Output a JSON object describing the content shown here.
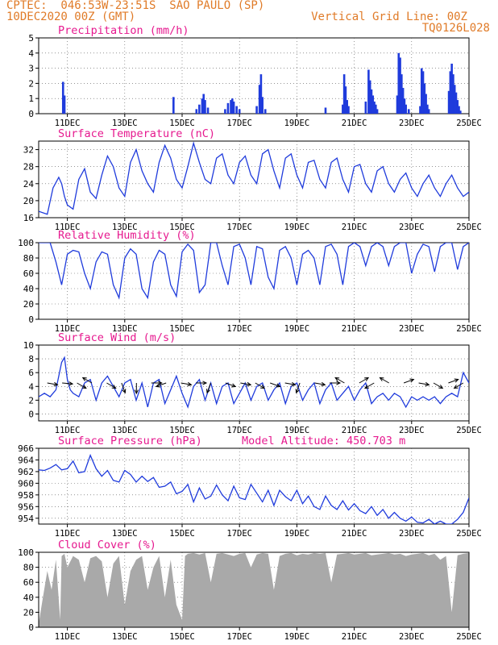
{
  "header": {
    "line1": "CPTEC:  046:53W-23:51S  SAO PAULO (SP)",
    "line2": "10DEC2020 00Z (GMT)",
    "grid_note": "Vertical Grid Line: 00Z",
    "code": "TQ0126L028"
  },
  "colors": {
    "header": "#e07b28",
    "title": "#e6198f",
    "line": "#1f3bdc",
    "cloud": "#a9a9a9",
    "grid": "#555555"
  },
  "x_axis": {
    "ticks": [
      1,
      3,
      5,
      7,
      9,
      11,
      13,
      15
    ],
    "tick_labels": [
      "11DEC",
      "13DEC",
      "15DEC",
      "17DEC",
      "19DEC",
      "21DEC",
      "23DEC",
      "25DEC"
    ],
    "range_days": [
      0,
      15
    ]
  },
  "chart_data": [
    {
      "id": "precip",
      "type": "bar",
      "title": "Precipitation (mm/h)",
      "ylim": [
        0,
        5
      ],
      "yticks": [
        0,
        1,
        2,
        3,
        4,
        5
      ],
      "grid": true,
      "points": [
        [
          0.85,
          2.1
        ],
        [
          0.9,
          1.2
        ],
        [
          4.7,
          1.1
        ],
        [
          5.5,
          0.3
        ],
        [
          5.6,
          0.6
        ],
        [
          5.7,
          1.0
        ],
        [
          5.75,
          1.3
        ],
        [
          5.8,
          0.9
        ],
        [
          5.9,
          0.4
        ],
        [
          6.5,
          0.3
        ],
        [
          6.6,
          0.7
        ],
        [
          6.7,
          0.9
        ],
        [
          6.75,
          1.0
        ],
        [
          6.8,
          0.8
        ],
        [
          6.9,
          0.5
        ],
        [
          7.0,
          0.3
        ],
        [
          7.6,
          0.5
        ],
        [
          7.7,
          1.9
        ],
        [
          7.75,
          2.6
        ],
        [
          7.8,
          1.1
        ],
        [
          7.9,
          0.3
        ],
        [
          10.0,
          0.4
        ],
        [
          10.6,
          0.6
        ],
        [
          10.65,
          2.6
        ],
        [
          10.7,
          1.8
        ],
        [
          10.75,
          0.9
        ],
        [
          10.8,
          0.5
        ],
        [
          11.4,
          0.8
        ],
        [
          11.5,
          2.9
        ],
        [
          11.55,
          2.2
        ],
        [
          11.6,
          1.6
        ],
        [
          11.65,
          1.2
        ],
        [
          11.7,
          0.8
        ],
        [
          11.75,
          0.6
        ],
        [
          11.8,
          0.3
        ],
        [
          12.5,
          1.2
        ],
        [
          12.55,
          4.0
        ],
        [
          12.6,
          3.7
        ],
        [
          12.65,
          2.6
        ],
        [
          12.7,
          1.7
        ],
        [
          12.75,
          1.0
        ],
        [
          12.8,
          0.6
        ],
        [
          12.9,
          0.3
        ],
        [
          13.3,
          0.5
        ],
        [
          13.35,
          3.0
        ],
        [
          13.4,
          2.8
        ],
        [
          13.45,
          2.0
        ],
        [
          13.5,
          1.3
        ],
        [
          13.55,
          0.6
        ],
        [
          13.6,
          0.3
        ],
        [
          14.3,
          1.5
        ],
        [
          14.35,
          2.8
        ],
        [
          14.4,
          3.3
        ],
        [
          14.45,
          2.6
        ],
        [
          14.5,
          1.9
        ],
        [
          14.55,
          1.4
        ],
        [
          14.6,
          0.9
        ],
        [
          14.65,
          0.5
        ],
        [
          14.7,
          0.2
        ]
      ]
    },
    {
      "id": "temp",
      "type": "line",
      "title": "Surface Temperature (nC)",
      "ylim": [
        16,
        34
      ],
      "yticks": [
        16,
        20,
        24,
        28,
        32
      ],
      "grid": true,
      "x": [
        0.0,
        0.3,
        0.5,
        0.7,
        0.8,
        0.9,
        1.0,
        1.2,
        1.4,
        1.6,
        1.8,
        2.0,
        2.2,
        2.4,
        2.6,
        2.8,
        3.0,
        3.2,
        3.4,
        3.6,
        3.8,
        4.0,
        4.2,
        4.4,
        4.6,
        4.8,
        5.0,
        5.2,
        5.4,
        5.6,
        5.8,
        6.0,
        6.2,
        6.4,
        6.6,
        6.8,
        7.0,
        7.2,
        7.4,
        7.6,
        7.8,
        8.0,
        8.2,
        8.4,
        8.6,
        8.8,
        9.0,
        9.2,
        9.4,
        9.6,
        9.8,
        10.0,
        10.2,
        10.4,
        10.6,
        10.8,
        11.0,
        11.2,
        11.4,
        11.6,
        11.8,
        12.0,
        12.2,
        12.4,
        12.6,
        12.8,
        13.0,
        13.2,
        13.4,
        13.6,
        13.8,
        14.0,
        14.2,
        14.4,
        14.6,
        14.8,
        15.0
      ],
      "y": [
        17.5,
        16.8,
        23,
        25.5,
        24,
        21,
        19,
        18,
        25,
        27.5,
        22,
        20.5,
        26,
        30.5,
        28,
        23,
        21,
        29,
        32,
        27,
        24,
        22,
        29,
        33,
        30,
        25,
        23,
        28,
        33.5,
        29,
        25,
        24,
        30,
        31,
        26,
        24,
        29,
        30.5,
        26,
        24,
        31,
        32,
        27,
        23,
        30,
        31,
        26,
        23,
        29,
        29.5,
        25,
        23,
        29,
        30,
        25,
        22,
        28,
        28.5,
        24,
        22,
        27,
        28,
        24,
        22,
        25,
        26.5,
        23,
        21,
        24,
        26,
        23,
        21,
        24,
        26,
        23,
        21,
        22
      ]
    },
    {
      "id": "rh",
      "type": "line",
      "title": "Relative Humidity (%)",
      "ylim": [
        0,
        100
      ],
      "yticks": [
        0,
        20,
        40,
        60,
        80,
        100
      ],
      "grid": true,
      "x": [
        0.0,
        0.2,
        0.4,
        0.6,
        0.8,
        1.0,
        1.2,
        1.4,
        1.6,
        1.8,
        2.0,
        2.2,
        2.4,
        2.6,
        2.8,
        3.0,
        3.2,
        3.4,
        3.6,
        3.8,
        4.0,
        4.2,
        4.4,
        4.6,
        4.8,
        5.0,
        5.2,
        5.4,
        5.6,
        5.8,
        6.0,
        6.2,
        6.4,
        6.6,
        6.8,
        7.0,
        7.2,
        7.4,
        7.6,
        7.8,
        8.0,
        8.2,
        8.4,
        8.6,
        8.8,
        9.0,
        9.2,
        9.4,
        9.6,
        9.8,
        10.0,
        10.2,
        10.4,
        10.6,
        10.8,
        11.0,
        11.2,
        11.4,
        11.6,
        11.8,
        12.0,
        12.2,
        12.4,
        12.6,
        12.8,
        13.0,
        13.2,
        13.4,
        13.6,
        13.8,
        14.0,
        14.2,
        14.4,
        14.6,
        14.8,
        15.0
      ],
      "y": [
        100,
        100,
        100,
        75,
        45,
        85,
        90,
        88,
        60,
        40,
        75,
        88,
        85,
        45,
        28,
        80,
        92,
        85,
        40,
        28,
        75,
        90,
        85,
        45,
        30,
        88,
        98,
        90,
        35,
        45,
        100,
        100,
        70,
        45,
        95,
        98,
        80,
        45,
        95,
        92,
        55,
        40,
        90,
        95,
        80,
        45,
        85,
        90,
        80,
        45,
        95,
        98,
        85,
        45,
        95,
        100,
        95,
        70,
        95,
        100,
        95,
        70,
        95,
        100,
        100,
        60,
        85,
        98,
        95,
        62,
        95,
        100,
        100,
        65,
        95,
        100
      ]
    },
    {
      "id": "wind",
      "type": "line",
      "title": "Surface Wind (m/s)",
      "ylim": [
        -1,
        10
      ],
      "yticks": [
        0,
        2,
        4,
        6,
        8,
        10
      ],
      "grid": true,
      "x": [
        0.0,
        0.2,
        0.4,
        0.6,
        0.8,
        0.9,
        1.0,
        1.1,
        1.2,
        1.4,
        1.6,
        1.8,
        2.0,
        2.2,
        2.4,
        2.6,
        2.8,
        3.0,
        3.2,
        3.4,
        3.6,
        3.8,
        4.0,
        4.2,
        4.4,
        4.6,
        4.8,
        5.0,
        5.2,
        5.4,
        5.6,
        5.8,
        6.0,
        6.2,
        6.4,
        6.6,
        6.8,
        7.0,
        7.2,
        7.4,
        7.6,
        7.8,
        8.0,
        8.2,
        8.4,
        8.6,
        8.8,
        9.0,
        9.2,
        9.4,
        9.6,
        9.8,
        10.0,
        10.2,
        10.4,
        10.6,
        10.8,
        11.0,
        11.2,
        11.4,
        11.6,
        11.8,
        12.0,
        12.2,
        12.4,
        12.6,
        12.8,
        13.0,
        13.2,
        13.4,
        13.6,
        13.8,
        14.0,
        14.2,
        14.4,
        14.6,
        14.8,
        15.0
      ],
      "y": [
        2.5,
        3.0,
        2.5,
        3.5,
        7.5,
        8.2,
        5,
        3.5,
        3.0,
        2.5,
        4.5,
        5.0,
        2.0,
        4.5,
        5.5,
        4.0,
        2.5,
        4.5,
        5.0,
        2.0,
        4.5,
        1.0,
        4.5,
        5.0,
        1.5,
        3.5,
        5.5,
        3.0,
        1.0,
        4.0,
        5.0,
        2.0,
        4.5,
        1.5,
        4.0,
        4.5,
        1.5,
        3.0,
        4.5,
        2.0,
        4.0,
        4.5,
        2.0,
        3.5,
        4.5,
        1.5,
        4.0,
        4.5,
        2.0,
        3.5,
        4.5,
        1.5,
        3.5,
        4.5,
        2.0,
        3.0,
        4.0,
        2.0,
        3.5,
        4.5,
        1.5,
        2.5,
        3.0,
        2.0,
        3.0,
        2.5,
        1.0,
        2.5,
        2.0,
        2.5,
        2.0,
        2.5,
        1.5,
        2.5,
        3.0,
        2.5,
        6.0,
        4.5
      ],
      "arrows_dir_deg": [
        100,
        95,
        120,
        300,
        120,
        160,
        180,
        90,
        250,
        100,
        90,
        200,
        110,
        100,
        120,
        110,
        100,
        200,
        100,
        90,
        300,
        60,
        240,
        300,
        70,
        100,
        120,
        70,
        240
      ]
    },
    {
      "id": "pres",
      "type": "line",
      "title": "Surface Pressure (hPa)",
      "annotation": "Model Altitude: 450.703 m",
      "ylim": [
        953,
        966
      ],
      "yticks": [
        954,
        956,
        958,
        960,
        962,
        964,
        966
      ],
      "grid": true,
      "x": [
        0.0,
        0.2,
        0.4,
        0.6,
        0.8,
        1.0,
        1.2,
        1.4,
        1.6,
        1.8,
        2.0,
        2.2,
        2.4,
        2.6,
        2.8,
        3.0,
        3.2,
        3.4,
        3.6,
        3.8,
        4.0,
        4.2,
        4.4,
        4.6,
        4.8,
        5.0,
        5.2,
        5.4,
        5.6,
        5.8,
        6.0,
        6.2,
        6.4,
        6.6,
        6.8,
        7.0,
        7.2,
        7.4,
        7.6,
        7.8,
        8.0,
        8.2,
        8.4,
        8.6,
        8.8,
        9.0,
        9.2,
        9.4,
        9.6,
        9.8,
        10.0,
        10.2,
        10.4,
        10.6,
        10.8,
        11.0,
        11.2,
        11.4,
        11.6,
        11.8,
        12.0,
        12.2,
        12.4,
        12.6,
        12.8,
        13.0,
        13.2,
        13.4,
        13.6,
        13.8,
        14.0,
        14.2,
        14.4,
        14.6,
        14.8,
        15.0
      ],
      "y": [
        962.3,
        962.2,
        962.6,
        963.2,
        962.3,
        962.5,
        963.8,
        961.8,
        962.0,
        964.8,
        962.5,
        961.2,
        962.2,
        960.5,
        960.2,
        962.2,
        961.5,
        960.2,
        961.2,
        960.3,
        961.0,
        959.3,
        959.5,
        960.2,
        958.2,
        958.6,
        959.8,
        956.8,
        959.2,
        957.3,
        957.8,
        959.7,
        958.0,
        957.0,
        959.5,
        957.5,
        957.2,
        959.8,
        958.3,
        956.8,
        958.8,
        956.2,
        958.8,
        957.7,
        957.0,
        958.8,
        956.5,
        957.8,
        956.0,
        955.5,
        957.8,
        956.2,
        955.5,
        957.0,
        955.4,
        956.5,
        955.3,
        954.8,
        956.0,
        954.5,
        955.5,
        954.0,
        955.0,
        954.0,
        953.5,
        954.2,
        953.3,
        953.2,
        953.8,
        953.0,
        953.5,
        953.0,
        953.0,
        953.8,
        955.0,
        957.5
      ]
    },
    {
      "id": "cloud",
      "type": "area",
      "title": "Cloud Cover (%)",
      "ylim": [
        0,
        100
      ],
      "yticks": [
        0,
        20,
        40,
        60,
        80,
        100
      ],
      "grid": true,
      "x": [
        0.0,
        0.15,
        0.3,
        0.45,
        0.6,
        0.75,
        0.8,
        0.9,
        1.0,
        1.2,
        1.4,
        1.6,
        1.8,
        2.0,
        2.2,
        2.4,
        2.6,
        2.8,
        3.0,
        3.2,
        3.4,
        3.6,
        3.8,
        4.0,
        4.2,
        4.4,
        4.6,
        4.8,
        5.0,
        5.1,
        5.2,
        5.4,
        5.6,
        5.8,
        6.0,
        6.2,
        6.4,
        6.6,
        6.8,
        7.0,
        7.2,
        7.4,
        7.6,
        7.8,
        8.0,
        8.2,
        8.4,
        8.6,
        8.8,
        9.0,
        9.2,
        9.4,
        9.6,
        9.8,
        10.0,
        10.2,
        10.4,
        10.6,
        10.8,
        11.0,
        11.2,
        11.4,
        11.6,
        11.8,
        12.0,
        12.2,
        12.4,
        12.6,
        12.8,
        13.0,
        13.2,
        13.4,
        13.6,
        13.8,
        14.0,
        14.2,
        14.4,
        14.6,
        14.8,
        15.0
      ],
      "y": [
        5,
        40,
        75,
        50,
        90,
        10,
        95,
        98,
        80,
        95,
        90,
        60,
        92,
        95,
        88,
        40,
        85,
        95,
        30,
        75,
        90,
        95,
        50,
        80,
        95,
        40,
        90,
        30,
        10,
        95,
        98,
        99,
        97,
        99,
        60,
        98,
        99,
        97,
        95,
        98,
        99,
        80,
        97,
        99,
        98,
        50,
        95,
        98,
        99,
        96,
        98,
        97,
        99,
        98,
        99,
        60,
        97,
        98,
        99,
        97,
        98,
        99,
        96,
        97,
        98,
        99,
        97,
        98,
        95,
        97,
        98,
        99,
        96,
        98,
        90,
        95,
        20,
        96,
        98,
        99
      ]
    }
  ]
}
